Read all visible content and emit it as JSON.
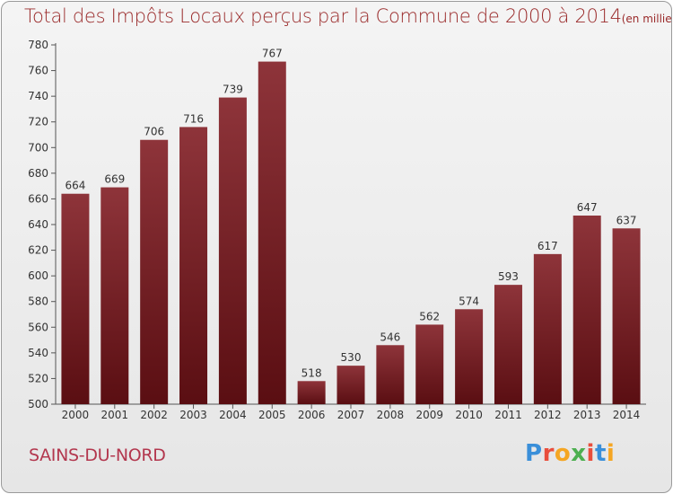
{
  "chart_data": {
    "type": "bar",
    "title": "Total des Impôts Locaux perçus par la Commune de 2000 à 2014",
    "unit_label": "(en milliers d'€)",
    "categories": [
      "2000",
      "2001",
      "2002",
      "2003",
      "2004",
      "2005",
      "2006",
      "2007",
      "2008",
      "2009",
      "2010",
      "2011",
      "2012",
      "2013",
      "2014"
    ],
    "values": [
      664,
      669,
      706,
      716,
      739,
      767,
      518,
      530,
      546,
      562,
      574,
      593,
      617,
      647,
      637
    ],
    "ylim": [
      500,
      780
    ],
    "ytick_step": 20,
    "xlabel": "",
    "ylabel": "",
    "grid": false,
    "bar_color": "#7a1f26"
  },
  "footer": {
    "commune": "SAINS-DU-NORD",
    "logo_letters": [
      "P",
      "r",
      "o",
      "x",
      "i",
      "t",
      "i"
    ],
    "logo_colors": [
      "#3a8fd9",
      "#e94e3c",
      "#f5a623",
      "#4caf50",
      "#e94e3c",
      "#3a8fd9",
      "#f5a623"
    ]
  }
}
